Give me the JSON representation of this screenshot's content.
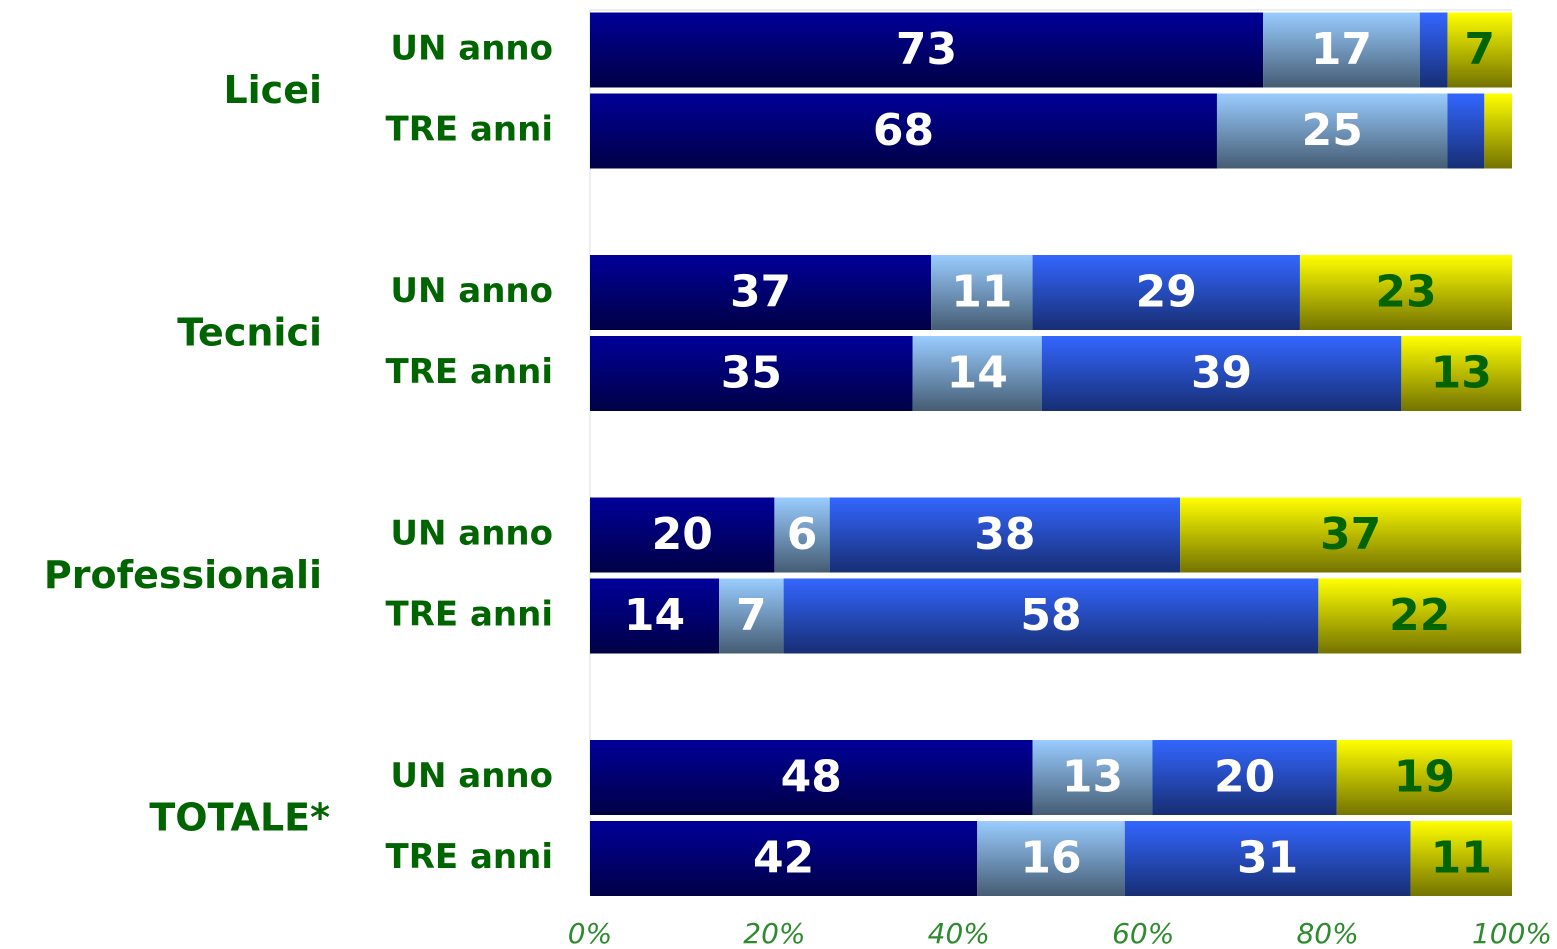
{
  "chart_data": {
    "type": "stacked_barh",
    "groups": [
      "Licei",
      "Tecnici",
      "Professionali",
      "TOTALE*"
    ],
    "categories": [
      "UN anno",
      "TRE anni",
      "UN anno",
      "TRE anni",
      "UN anno",
      "TRE anni",
      "UN anno",
      "TRE anni"
    ],
    "series": [
      {
        "color": "#000099",
        "label_color": "#ffffff",
        "values": [
          73,
          68,
          37,
          35,
          20,
          14,
          48,
          42
        ]
      },
      {
        "color": "#99ccff",
        "label_color": "#ffffff",
        "values": [
          17,
          25,
          11,
          14,
          6,
          7,
          13,
          16
        ]
      },
      {
        "color": "#3366ff",
        "label_color": "#ffffff",
        "values": [
          3,
          4,
          29,
          39,
          38,
          58,
          20,
          31
        ],
        "value_labels": [
          null,
          null,
          "29",
          "39",
          "38",
          "58",
          "20",
          "31"
        ]
      },
      {
        "color": "#ffff00",
        "label_color": "#006400",
        "values": [
          7,
          3,
          23,
          13,
          37,
          22,
          19,
          11
        ],
        "value_labels": [
          "7",
          null,
          "23",
          "13",
          "37",
          "22",
          "19",
          "11"
        ]
      }
    ],
    "xlim": [
      0,
      100
    ],
    "xticks": [
      {
        "value": 0,
        "label": "0%"
      },
      {
        "value": 20,
        "label": "20%"
      },
      {
        "value": 40,
        "label": "40%"
      },
      {
        "value": 60,
        "label": "60%"
      },
      {
        "value": 80,
        "label": "80%"
      },
      {
        "value": 100,
        "label": "100%"
      }
    ]
  }
}
